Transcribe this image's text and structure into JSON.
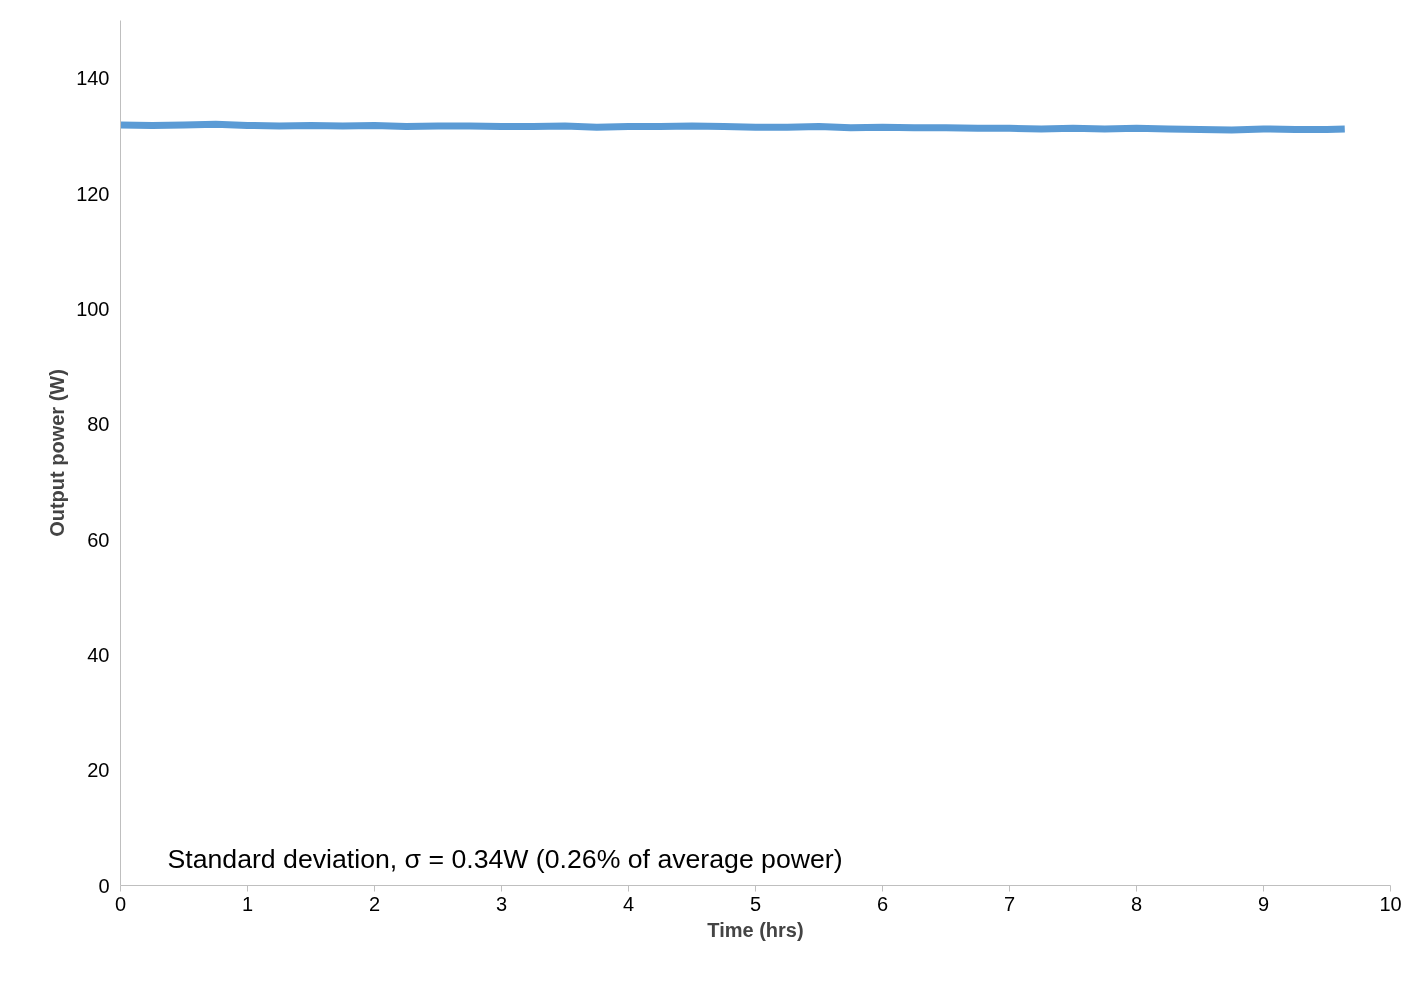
{
  "chart_data": {
    "type": "line",
    "xlabel": "Time (hrs)",
    "ylabel": "Output power (W)",
    "annotations": [
      "Standard deviation, σ = 0.34W (0.26% of average power)"
    ],
    "xlim": [
      0,
      10
    ],
    "xticks": [
      0,
      1,
      2,
      3,
      4,
      5,
      6,
      7,
      8,
      9,
      10
    ],
    "ylim": [
      0,
      150
    ],
    "yticks": [
      0,
      20,
      40,
      60,
      80,
      100,
      120,
      140
    ],
    "grid": false,
    "series": [
      {
        "color": "#5b9bd5",
        "x": [
          0,
          0.25,
          0.5,
          0.75,
          1,
          1.25,
          1.5,
          1.75,
          2,
          2.25,
          2.5,
          2.75,
          3,
          3.25,
          3.5,
          3.75,
          4,
          4.25,
          4.5,
          4.75,
          5,
          5.25,
          5.5,
          5.75,
          6,
          6.25,
          6.5,
          6.75,
          7,
          7.25,
          7.5,
          7.75,
          8,
          8.25,
          8.5,
          8.75,
          9,
          9.25,
          9.5,
          9.64
        ],
        "values": [
          131.9,
          131.8,
          131.9,
          132.0,
          131.8,
          131.7,
          131.8,
          131.7,
          131.8,
          131.6,
          131.7,
          131.7,
          131.6,
          131.6,
          131.7,
          131.5,
          131.6,
          131.6,
          131.7,
          131.6,
          131.5,
          131.5,
          131.6,
          131.4,
          131.5,
          131.4,
          131.4,
          131.3,
          131.3,
          131.2,
          131.3,
          131.2,
          131.3,
          131.2,
          131.1,
          131.0,
          131.2,
          131.1,
          131.1,
          131.2
        ]
      }
    ]
  }
}
